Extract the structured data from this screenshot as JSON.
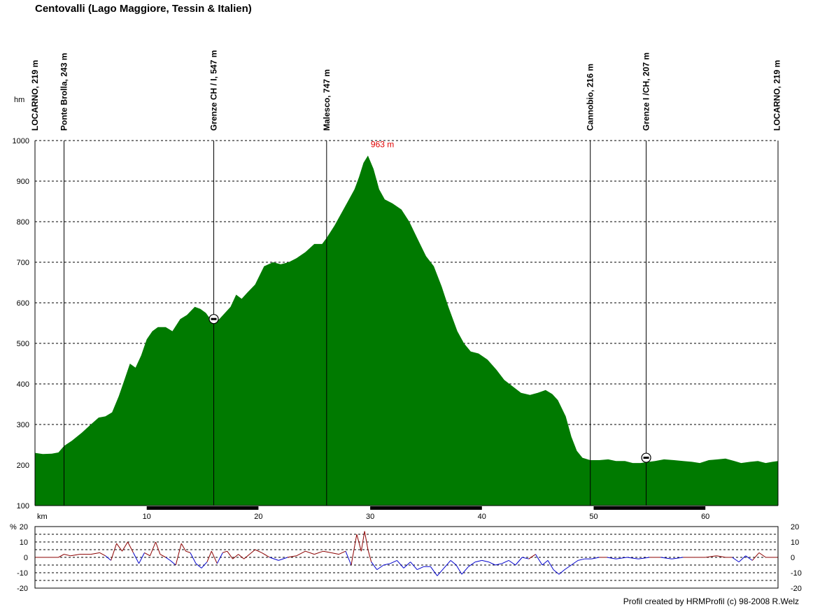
{
  "title": "Centovalli (Lago Maggiore, Tessin & Italien)",
  "credit": "Profil created by HRMProfil (c) 98-2008 R.Welz",
  "colors": {
    "profile_fill": "#007a00",
    "peak_label": "#e00000",
    "uphill": "#8b0000",
    "downhill": "#0000cc"
  },
  "chart_data": [
    {
      "type": "area",
      "xlabel": "km",
      "ylabel": "hm",
      "xlim": [
        0,
        66.5
      ],
      "ylim": [
        100,
        1000
      ],
      "x_ticks": [
        10,
        20,
        30,
        40,
        50,
        60
      ],
      "y_ticks": [
        100,
        200,
        300,
        400,
        500,
        600,
        700,
        800,
        900,
        1000
      ],
      "grid": "horizontal dashed",
      "peak_label": {
        "text": "963 m",
        "x": 29.8,
        "y": 963
      },
      "waypoints": [
        {
          "label": "LOCARNO, 219 m",
          "x": 0
        },
        {
          "label": "Ponte Brolla, 243 m",
          "x": 2.6
        },
        {
          "label": "Grenze CH / I, 547 m",
          "x": 16.0
        },
        {
          "label": "Malesco, 747 m",
          "x": 26.1
        },
        {
          "label": "Cannobio, 216 m",
          "x": 49.7
        },
        {
          "label": "Grenze I /CH, 207 m",
          "x": 54.7
        },
        {
          "label": "LOCARNO, 219 m",
          "x": 66.4
        }
      ],
      "border_icons": [
        {
          "x": 16.0,
          "y": 560
        },
        {
          "x": 54.7,
          "y": 218
        }
      ],
      "series": [
        {
          "x": [
            0,
            0.7,
            1.5,
            2.1,
            2.6,
            3.3,
            4.2,
            5.0,
            5.7,
            6.3,
            6.9,
            7.5,
            8.0,
            8.5,
            9.0,
            9.5,
            10.0,
            10.5,
            11.0,
            11.7,
            12.3,
            13.0,
            13.6,
            14.3,
            14.8,
            15.3,
            15.7,
            16.0,
            16.5,
            17.0,
            17.5,
            18.0,
            18.5,
            19.0,
            19.7,
            20.5,
            21.3,
            22.0,
            22.7,
            23.4,
            24.2,
            25.0,
            25.7,
            26.1,
            26.8,
            27.5,
            28.0,
            28.6,
            29.0,
            29.4,
            29.8,
            30.3,
            30.8,
            31.3,
            32.0,
            32.8,
            33.5,
            34.2,
            35.0,
            35.7,
            36.4,
            37.0,
            37.8,
            38.4,
            39.0,
            39.7,
            40.5,
            41.3,
            42.0,
            42.7,
            43.5,
            44.3,
            45.0,
            45.7,
            46.3,
            46.8,
            47.5,
            48.0,
            48.5,
            49.0,
            49.7,
            50.5,
            51.3,
            52.0,
            52.8,
            53.5,
            54.2,
            54.7,
            55.5,
            56.3,
            57.2,
            58.0,
            58.8,
            59.5,
            60.3,
            61.1,
            61.8,
            62.6,
            63.2,
            64.0,
            64.7,
            65.4,
            66.0,
            66.5
          ],
          "y": [
            230,
            227,
            228,
            231,
            247,
            260,
            280,
            300,
            317,
            320,
            330,
            370,
            410,
            450,
            440,
            470,
            510,
            530,
            540,
            540,
            530,
            560,
            570,
            590,
            585,
            575,
            560,
            550,
            560,
            575,
            590,
            620,
            610,
            625,
            645,
            690,
            700,
            695,
            700,
            710,
            725,
            745,
            745,
            760,
            790,
            825,
            850,
            880,
            910,
            945,
            963,
            930,
            880,
            855,
            845,
            830,
            800,
            760,
            715,
            690,
            640,
            590,
            530,
            500,
            480,
            475,
            460,
            435,
            410,
            395,
            378,
            373,
            378,
            385,
            375,
            360,
            320,
            270,
            235,
            218,
            212,
            212,
            214,
            210,
            210,
            205,
            205,
            207,
            210,
            214,
            212,
            210,
            208,
            205,
            212,
            214,
            216,
            210,
            205,
            208,
            210,
            205,
            208,
            210
          ]
        }
      ]
    },
    {
      "type": "line",
      "ylabel": "%",
      "xlim": [
        0,
        66.5
      ],
      "ylim": [
        -20,
        20
      ],
      "y_ticks": [
        20,
        10,
        0,
        -10,
        -20
      ],
      "grid": "horizontal dashed",
      "series": [
        {
          "x": [
            0,
            1.2,
            2.1,
            2.6,
            3.2,
            4.0,
            5.0,
            5.8,
            6.3,
            6.8,
            7.3,
            7.8,
            8.3,
            8.8,
            9.3,
            9.8,
            10.3,
            10.8,
            11.2,
            11.7,
            12.1,
            12.6,
            13.1,
            13.5,
            13.9,
            14.4,
            14.9,
            15.4,
            15.8,
            16.3,
            16.8,
            17.2,
            17.7,
            18.2,
            18.7,
            19.2,
            19.7,
            20.3,
            21.0,
            21.8,
            22.6,
            23.4,
            24.2,
            25.0,
            25.8,
            26.5,
            27.2,
            27.8,
            28.3,
            28.8,
            29.2,
            29.5,
            29.8,
            30.1,
            30.6,
            31.2,
            31.8,
            32.4,
            33.0,
            33.6,
            34.2,
            34.8,
            35.4,
            36.0,
            36.6,
            37.2,
            37.7,
            38.2,
            38.8,
            39.4,
            40.0,
            40.6,
            41.2,
            41.8,
            42.4,
            43.0,
            43.6,
            44.2,
            44.8,
            45.4,
            45.9,
            46.4,
            46.9,
            47.4,
            48.0,
            48.6,
            49.2,
            49.8,
            50.5,
            51.2,
            52.0,
            53.0,
            54.0,
            55.0,
            56.0,
            57.0,
            58.0,
            59.0,
            60.0,
            61.0,
            61.8,
            62.4,
            63.0,
            63.6,
            64.2,
            64.8,
            65.4,
            66.0,
            66.5
          ],
          "y": [
            0,
            0,
            0,
            2,
            1,
            2,
            2,
            3,
            1,
            -2,
            9,
            4,
            10,
            3,
            -4,
            3,
            1,
            10,
            2,
            0,
            -2,
            -5,
            9,
            4,
            3,
            -4,
            -7,
            -3,
            4,
            -4,
            3,
            4,
            -1,
            2,
            -1,
            2,
            5,
            3,
            0,
            -2,
            0,
            1,
            4,
            2,
            4,
            3,
            2,
            4,
            -5,
            15,
            4,
            17,
            5,
            -3,
            -8,
            -5,
            -4,
            -2,
            -7,
            -3,
            -8,
            -6,
            -6,
            -12,
            -7,
            -2,
            -5,
            -11,
            -6,
            -3,
            -2,
            -3,
            -5,
            -4,
            -2,
            -5,
            0,
            -1,
            2,
            -5,
            -2,
            -8,
            -11,
            -8,
            -5,
            -2,
            -1,
            -1,
            0,
            0,
            -1,
            0,
            -1,
            0,
            0,
            -1,
            0,
            0,
            0,
            1,
            0,
            0,
            -3,
            1,
            -2,
            3,
            0,
            0,
            0
          ]
        }
      ]
    }
  ]
}
